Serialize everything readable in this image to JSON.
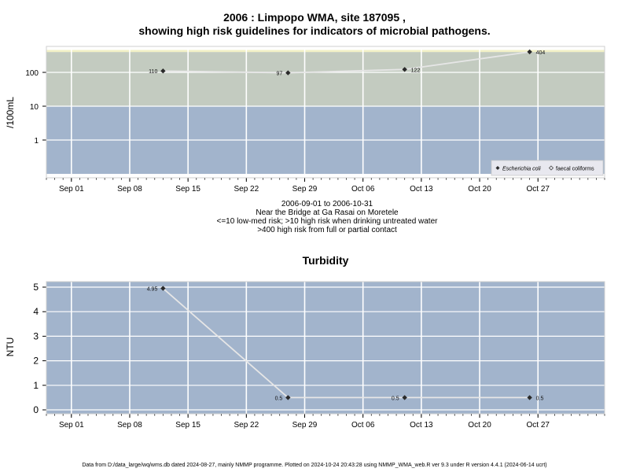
{
  "chart_data": [
    {
      "type": "line",
      "title": "2006 : Limpopo WMA, site 187095 ,",
      "subtitle": "showing high risk guidelines for indicators of microbial pathogens.",
      "ylabel": "/100mL",
      "yscale": "log",
      "yticks": [
        1,
        10,
        100
      ],
      "ytick_labels": [
        "1",
        "10",
        "100"
      ],
      "xticks": [
        "Sep 01",
        "Sep 08",
        "Sep 15",
        "Sep 22",
        "Sep 29",
        "Oct 06",
        "Oct 13",
        "Oct 20",
        "Oct 27"
      ],
      "xrange": [
        "2006-08-29",
        "2006-11-04"
      ],
      "grid": true,
      "legend": "bottom-right",
      "legend_entries": [
        "Escherichia coli",
        "faecal coliforms"
      ],
      "bands": [
        {
          "from": 0.1,
          "to": 10,
          "color": "#a2b4cc"
        },
        {
          "from": 10,
          "to": 400,
          "color": "#c3cbc0"
        },
        {
          "from": 400,
          "to": 460,
          "color": "#f2f0c6"
        }
      ],
      "series": [
        {
          "name": "Escherichia coli",
          "x": [
            "2006-09-12",
            "2006-09-27",
            "2006-10-11",
            "2006-10-26"
          ],
          "values": [
            110,
            97,
            122,
            404
          ],
          "labels": [
            "110",
            "97",
            "122",
            "404"
          ]
        }
      ]
    },
    {
      "type": "line",
      "title": "Turbidity",
      "ylabel": "NTU",
      "ylim": [
        -0.3,
        5.15
      ],
      "yticks": [
        0,
        1,
        2,
        3,
        4,
        5
      ],
      "xticks": [
        "Sep 01",
        "Sep 08",
        "Sep 15",
        "Sep 22",
        "Sep 29",
        "Oct 06",
        "Oct 13",
        "Oct 20",
        "Oct 27"
      ],
      "xrange": [
        "2006-08-29",
        "2006-11-04"
      ],
      "grid": true,
      "series": [
        {
          "x": [
            "2006-09-12",
            "2006-09-27",
            "2006-10-11",
            "2006-10-26"
          ],
          "values": [
            4.95,
            0.5,
            0.5,
            0.5
          ],
          "labels": [
            "4.95",
            "0.5",
            "0.5",
            "0.5"
          ]
        }
      ]
    }
  ],
  "caption": {
    "line1": "2006-09-01 to 2006-10-31",
    "line2": "Near the Bridge at Ga Rasai on Moretele",
    "line3": "<=10 low-med risk; >10 high risk when drinking untreated water",
    "line4": ">400 high risk from full or partial contact"
  },
  "footer": "Data from D:/data_large/wq/wms.db dated 2024-08-27, mainly NMMP programme. Plotted on 2024-10-24 20:43:28 using NMMP_WMA_web.R ver 9.3 under R version 4.4.1 (2024-06-14 ucrt)"
}
